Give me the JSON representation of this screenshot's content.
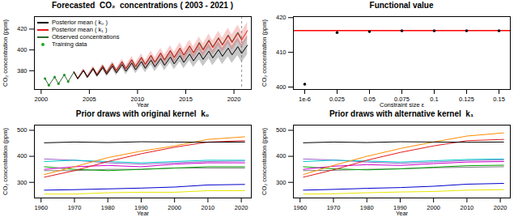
{
  "chart_data": [
    {
      "type": "line",
      "title": "Forecasted  CO₂  concentrations ( 2003 - 2021 )",
      "x_label": "Year",
      "y_label": "CO₂ concentration (ppm)",
      "x": [
        2000.4,
        2000.8,
        2001.4,
        2001.8,
        2002.4,
        2002.8,
        2003.4,
        2003.8,
        2004.4,
        2004.8,
        2005.4,
        2005.8,
        2006.4,
        2006.8,
        2007.4,
        2007.8,
        2008.4,
        2008.8,
        2009.4,
        2009.8,
        2010.4,
        2010.8,
        2011.4,
        2011.8,
        2012.4,
        2012.8,
        2013.4,
        2013.8,
        2014.4,
        2014.8,
        2015.4,
        2015.8,
        2016.4,
        2016.8,
        2017.4,
        2017.8,
        2018.4,
        2018.8,
        2019.4,
        2019.8,
        2020.4,
        2020.8,
        2021.4
      ],
      "xlim": [
        1999.3,
        2021.8
      ],
      "xticks": [
        2000,
        2005,
        2010,
        2015,
        2020
      ],
      "ylim": [
        362,
        432
      ],
      "yticks": [
        380,
        400,
        420
      ],
      "legend": "top-left",
      "reference_line": {
        "x": 2020.8,
        "line_style": "dashed"
      },
      "series": [
        {
          "name": "Posterior mean ( k₀ )",
          "color": "#000000",
          "values": [
            null,
            null,
            null,
            null,
            null,
            null,
            378.8,
            372.3,
            380.2,
            373.7,
            381.7,
            375.2,
            383.1,
            376.6,
            384.5,
            378.0,
            386.0,
            379.5,
            387.4,
            380.9,
            388.8,
            382.3,
            390.2,
            383.7,
            391.7,
            385.2,
            393.1,
            386.6,
            394.5,
            388.0,
            396.0,
            389.5,
            397.4,
            390.9,
            398.8,
            392.3,
            400.3,
            393.8,
            401.7,
            395.2,
            403.1,
            396.6,
            404.5
          ],
          "lower": [
            null,
            null,
            null,
            null,
            null,
            null,
            377.8,
            371.3,
            378.7,
            372.2,
            379.8,
            373.3,
            380.7,
            374.2,
            381.7,
            375.2,
            382.7,
            376.2,
            383.7,
            377.2,
            384.6,
            378.1,
            385.6,
            379.1,
            386.6,
            380.1,
            387.6,
            381.1,
            388.5,
            382.0,
            389.6,
            383.1,
            390.5,
            384.0,
            391.5,
            385.0,
            392.5,
            386.0,
            393.5,
            387.0,
            394.4,
            387.9,
            395.4
          ],
          "upper": [
            null,
            null,
            null,
            null,
            null,
            null,
            379.8,
            373.3,
            381.7,
            375.2,
            383.6,
            377.1,
            385.5,
            379.0,
            387.3,
            380.8,
            389.3,
            382.8,
            391.1,
            384.6,
            393.0,
            386.5,
            394.8,
            388.3,
            396.8,
            390.3,
            398.6,
            392.1,
            400.5,
            394.0,
            402.4,
            395.9,
            404.3,
            397.8,
            406.1,
            399.6,
            408.1,
            401.6,
            409.9,
            403.4,
            411.8,
            405.3,
            413.6
          ]
        },
        {
          "name": "Posterior mean ( k₁ )",
          "color": "#e41a1c",
          "values": [
            null,
            null,
            null,
            null,
            null,
            null,
            378.8,
            372.3,
            380.6,
            374.1,
            382.5,
            376.0,
            384.4,
            377.9,
            386.4,
            379.9,
            388.4,
            381.9,
            390.5,
            384.0,
            392.6,
            386.1,
            394.8,
            388.3,
            397.0,
            390.5,
            399.2,
            392.7,
            401.5,
            395.0,
            403.8,
            397.3,
            406.2,
            399.7,
            408.6,
            402.1,
            411.0,
            404.5,
            413.5,
            407.0,
            416.0,
            409.5,
            418.6
          ],
          "lower": [
            null,
            null,
            null,
            null,
            null,
            null,
            377.8,
            371.3,
            379.2,
            372.7,
            380.7,
            374.2,
            382.2,
            375.7,
            383.8,
            377.3,
            385.4,
            378.9,
            387.1,
            380.6,
            388.8,
            382.3,
            390.6,
            384.1,
            392.4,
            385.9,
            394.2,
            387.7,
            396.1,
            389.6,
            398.0,
            391.5,
            400.0,
            393.5,
            402.0,
            395.5,
            404.0,
            397.5,
            406.1,
            399.6,
            408.2,
            401.7,
            410.4
          ],
          "upper": [
            null,
            null,
            null,
            null,
            null,
            null,
            379.8,
            373.3,
            382.0,
            375.5,
            384.3,
            377.8,
            386.6,
            380.1,
            389.0,
            382.5,
            391.4,
            384.9,
            393.9,
            387.4,
            396.4,
            389.9,
            399.0,
            392.5,
            401.6,
            395.1,
            404.2,
            397.7,
            406.9,
            400.4,
            409.6,
            403.1,
            412.4,
            405.9,
            415.2,
            408.7,
            418.0,
            411.5,
            420.9,
            414.4,
            423.8,
            417.3,
            426.8
          ]
        },
        {
          "name": "Observed concentrations",
          "color": "#2e6b2e",
          "values": [
            372.5,
            366.0,
            374.0,
            367.5,
            376.0,
            369.5,
            378.8,
            372.3,
            380.5,
            374.0,
            382.8,
            376.3,
            384.9,
            378.4,
            386.8,
            380.3,
            388.6,
            382.1,
            390.4,
            383.9,
            392.9,
            386.4,
            394.6,
            388.1,
            396.8,
            390.3,
            399.5,
            393.0,
            401.6,
            395.1,
            403.8,
            397.3,
            407.2,
            400.7,
            409.5,
            403.0,
            411.7,
            405.2,
            414.4,
            407.9,
            416.9,
            410.4,
            null
          ]
        },
        {
          "name": "Training data",
          "color": "#22aa22",
          "type": "scatter",
          "marker": "circle",
          "values": [
            372.5,
            366.0,
            374.0,
            367.5,
            376.0,
            369.5,
            null,
            null,
            null,
            null,
            null,
            null,
            null,
            null,
            null,
            null,
            null,
            null,
            null,
            null,
            null,
            null,
            null,
            null,
            null,
            null,
            null,
            null,
            null,
            null,
            null,
            null,
            null,
            null,
            null,
            null,
            null,
            null,
            null,
            null,
            null,
            null,
            null
          ]
        }
      ]
    },
    {
      "type": "scatter",
      "title": "Functional value",
      "x_label": "Constraint size ε",
      "y_label": "CO₂ concentration (ppm)",
      "categories": [
        "1e-6",
        "0.025",
        "0.05",
        "0.075",
        "0.1",
        "0.125",
        "0.15"
      ],
      "values": [
        400.8,
        415.7,
        416.0,
        416.2,
        416.2,
        416.2,
        416.2
      ],
      "color": "#000000",
      "marker": "circle",
      "ylim": [
        399.3,
        420.3
      ],
      "yticks": [
        400,
        410,
        420
      ],
      "reference_line": {
        "y": 416.3,
        "color": "#ff0000"
      }
    },
    {
      "type": "line",
      "title": "Prior draws with original kernel  k₀",
      "x_label": "Year",
      "y_label": "CO₂ concentration (ppm)",
      "x": [
        1961,
        1970,
        1980,
        1990,
        2000,
        2010,
        2021
      ],
      "xlim": [
        1958,
        2023
      ],
      "xticks": [
        1960,
        1970,
        1980,
        1990,
        2000,
        2010,
        2020
      ],
      "ylim": [
        240,
        520
      ],
      "yticks": [
        300,
        400,
        500
      ],
      "series": [
        {
          "color": "#000000",
          "values": [
            452,
            455,
            453,
            456,
            455,
            454,
            455
          ]
        },
        {
          "color": "#ff8c00",
          "values": [
            330,
            360,
            395,
            420,
            440,
            465,
            475
          ]
        },
        {
          "color": "#e41a1c",
          "values": [
            320,
            345,
            380,
            410,
            435,
            455,
            460
          ]
        },
        {
          "color": "#00cdcd",
          "values": [
            380,
            385,
            380,
            375,
            380,
            385,
            385
          ]
        },
        {
          "color": "#cd00cd",
          "values": [
            350,
            360,
            365,
            360,
            370,
            375,
            375
          ]
        },
        {
          "color": "#9966cc",
          "values": [
            390,
            385,
            375,
            370,
            375,
            380,
            382
          ]
        },
        {
          "color": "#00a000",
          "values": [
            360,
            350,
            345,
            350,
            355,
            360,
            360
          ]
        },
        {
          "color": "#808080",
          "values": [
            345,
            345,
            350,
            350,
            355,
            355,
            355
          ]
        },
        {
          "color": "#0000cd",
          "values": [
            270,
            272,
            275,
            278,
            282,
            290,
            292
          ]
        },
        {
          "color": "#e6e600",
          "values": [
            255,
            255,
            260,
            262,
            262,
            268,
            268
          ]
        }
      ]
    },
    {
      "type": "line",
      "title": "Prior draws with alternative kernel  k₁",
      "x_label": "Year",
      "y_label": "CO₂ concentration (ppm)",
      "x": [
        1961,
        1970,
        1980,
        1990,
        2000,
        2010,
        2021
      ],
      "xlim": [
        1958,
        2023
      ],
      "xticks": [
        1960,
        1970,
        1980,
        1990,
        2000,
        2010,
        2020
      ],
      "ylim": [
        240,
        520
      ],
      "yticks": [
        300,
        400,
        500
      ],
      "series": [
        {
          "color": "#000000",
          "values": [
            452,
            455,
            453,
            456,
            455,
            454,
            455
          ]
        },
        {
          "color": "#ff8c00",
          "values": [
            330,
            365,
            400,
            430,
            455,
            478,
            490
          ]
        },
        {
          "color": "#e41a1c",
          "values": [
            320,
            348,
            385,
            415,
            440,
            460,
            465
          ]
        },
        {
          "color": "#00cdcd",
          "values": [
            380,
            385,
            382,
            378,
            383,
            388,
            390
          ]
        },
        {
          "color": "#cd00cd",
          "values": [
            350,
            362,
            368,
            365,
            372,
            378,
            380
          ]
        },
        {
          "color": "#9966cc",
          "values": [
            390,
            386,
            378,
            373,
            378,
            384,
            386
          ]
        },
        {
          "color": "#00a000",
          "values": [
            360,
            352,
            348,
            352,
            358,
            364,
            366
          ]
        },
        {
          "color": "#808080",
          "values": [
            345,
            346,
            350,
            352,
            356,
            358,
            360
          ]
        },
        {
          "color": "#0000cd",
          "values": [
            270,
            273,
            277,
            280,
            285,
            293,
            296
          ]
        },
        {
          "color": "#e6e600",
          "values": [
            255,
            256,
            260,
            263,
            265,
            270,
            272
          ]
        }
      ]
    }
  ]
}
